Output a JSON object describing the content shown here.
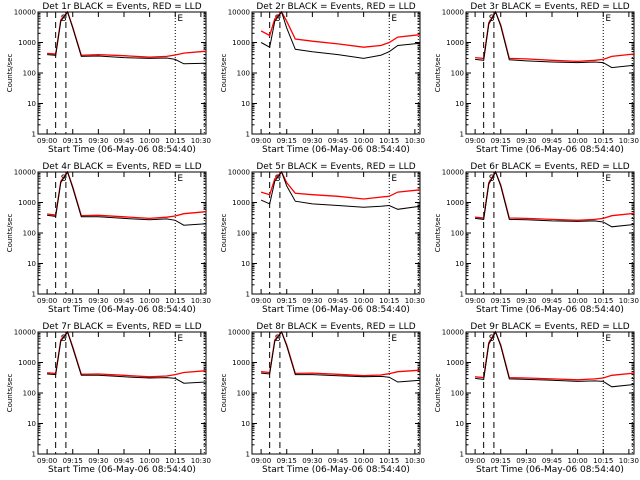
{
  "xlabel": "Start Time (06-May-06 08:54:40)",
  "ylabel": "Counts/sec",
  "x_ticks": [
    "09:00",
    "09:15",
    "09:30",
    "09:45",
    "10:00",
    "10:15",
    "10:30"
  ],
  "y_ticks": [
    "1",
    "10",
    "100",
    "1000",
    "10000"
  ],
  "line_colors": {
    "events": "#000000",
    "lld": "#ff0000"
  },
  "marker_labels": [
    "S",
    "E"
  ],
  "chart_data": [
    {
      "type": "line",
      "title": "Det 1r BLACK = Events, RED = LLD",
      "xlim": [
        "08:54:40",
        "10:33"
      ],
      "ylim": [
        1,
        10000
      ],
      "y_scale": "log",
      "x": [
        "09:00",
        "09:05",
        "09:08",
        "09:12",
        "09:15",
        "09:20",
        "09:30",
        "09:45",
        "10:00",
        "10:10",
        "10:15",
        "10:20",
        "10:33"
      ],
      "series": [
        {
          "name": "Events",
          "values": [
            400,
            380,
            5000,
            10000,
            3000,
            350,
            360,
            320,
            300,
            310,
            280,
            200,
            210
          ]
        },
        {
          "name": "LLD",
          "values": [
            440,
            420,
            5500,
            10000,
            3200,
            380,
            400,
            370,
            330,
            350,
            390,
            450,
            520
          ]
        }
      ]
    },
    {
      "type": "line",
      "title": "Det 2r BLACK = Events, RED = LLD",
      "xlim": [
        "08:54:40",
        "10:33"
      ],
      "ylim": [
        1,
        10000
      ],
      "y_scale": "log",
      "x": [
        "09:00",
        "09:05",
        "09:08",
        "09:12",
        "09:15",
        "09:20",
        "09:30",
        "09:45",
        "10:00",
        "10:10",
        "10:15",
        "10:20",
        "10:33"
      ],
      "series": [
        {
          "name": "Events",
          "values": [
            1000,
            700,
            5000,
            10000,
            3000,
            600,
            500,
            400,
            300,
            380,
            500,
            800,
            950
          ]
        },
        {
          "name": "LLD",
          "values": [
            2400,
            1700,
            6000,
            10000,
            5000,
            1300,
            1100,
            900,
            700,
            800,
            1000,
            1500,
            1800
          ]
        }
      ]
    },
    {
      "type": "line",
      "title": "Det 3r BLACK = Events, RED = LLD",
      "xlim": [
        "08:54:40",
        "10:33"
      ],
      "ylim": [
        1,
        10000
      ],
      "y_scale": "log",
      "x": [
        "09:00",
        "09:05",
        "09:08",
        "09:12",
        "09:15",
        "09:20",
        "09:30",
        "09:45",
        "10:00",
        "10:10",
        "10:15",
        "10:20",
        "10:33"
      ],
      "series": [
        {
          "name": "Events",
          "values": [
            280,
            260,
            4000,
            10000,
            3500,
            270,
            250,
            230,
            220,
            230,
            220,
            150,
            180
          ]
        },
        {
          "name": "LLD",
          "values": [
            320,
            300,
            4500,
            10000,
            3800,
            300,
            290,
            260,
            240,
            260,
            280,
            350,
            420
          ]
        }
      ]
    },
    {
      "type": "line",
      "title": "Det 4r BLACK = Events, RED = LLD",
      "xlim": [
        "08:54:40",
        "10:33"
      ],
      "ylim": [
        1,
        10000
      ],
      "y_scale": "log",
      "x": [
        "09:00",
        "09:05",
        "09:08",
        "09:12",
        "09:15",
        "09:20",
        "09:30",
        "09:45",
        "10:00",
        "10:10",
        "10:15",
        "10:20",
        "10:33"
      ],
      "series": [
        {
          "name": "Events",
          "values": [
            380,
            350,
            4500,
            10000,
            3000,
            340,
            340,
            300,
            270,
            290,
            260,
            180,
            200
          ]
        },
        {
          "name": "LLD",
          "values": [
            420,
            390,
            5000,
            10000,
            3300,
            370,
            380,
            340,
            300,
            330,
            360,
            430,
            500
          ]
        }
      ]
    },
    {
      "type": "line",
      "title": "Det 5r BLACK = Events, RED = LLD",
      "xlim": [
        "08:54:40",
        "10:33"
      ],
      "ylim": [
        1,
        10000
      ],
      "y_scale": "log",
      "x": [
        "09:00",
        "09:05",
        "09:08",
        "09:12",
        "09:15",
        "09:20",
        "09:30",
        "09:45",
        "10:00",
        "10:10",
        "10:15",
        "10:20",
        "10:33"
      ],
      "series": [
        {
          "name": "Events",
          "values": [
            1200,
            900,
            5000,
            10000,
            3500,
            1100,
            900,
            800,
            700,
            750,
            800,
            600,
            750
          ]
        },
        {
          "name": "LLD",
          "values": [
            2200,
            1800,
            6000,
            10000,
            4500,
            2000,
            1800,
            1600,
            1300,
            1500,
            1600,
            2200,
            2600
          ]
        }
      ]
    },
    {
      "type": "line",
      "title": "Det 6r BLACK = Events, RED = LLD",
      "xlim": [
        "08:54:40",
        "10:33"
      ],
      "ylim": [
        1,
        10000
      ],
      "y_scale": "log",
      "x": [
        "09:00",
        "09:05",
        "09:08",
        "09:12",
        "09:15",
        "09:20",
        "09:30",
        "09:45",
        "10:00",
        "10:10",
        "10:15",
        "10:20",
        "10:33"
      ],
      "series": [
        {
          "name": "Events",
          "values": [
            300,
            280,
            4000,
            10000,
            3500,
            280,
            270,
            250,
            240,
            250,
            230,
            160,
            190
          ]
        },
        {
          "name": "LLD",
          "values": [
            330,
            310,
            4500,
            10000,
            3800,
            310,
            300,
            280,
            260,
            280,
            300,
            370,
            440
          ]
        }
      ]
    },
    {
      "type": "line",
      "title": "Det 7r BLACK = Events, RED = LLD",
      "xlim": [
        "08:54:40",
        "10:33"
      ],
      "ylim": [
        1,
        10000
      ],
      "y_scale": "log",
      "x": [
        "09:00",
        "09:05",
        "09:08",
        "09:12",
        "09:15",
        "09:20",
        "09:30",
        "09:45",
        "10:00",
        "10:10",
        "10:15",
        "10:20",
        "10:33"
      ],
      "series": [
        {
          "name": "Events",
          "values": [
            420,
            400,
            5000,
            10000,
            3000,
            380,
            380,
            340,
            310,
            320,
            300,
            210,
            230
          ]
        },
        {
          "name": "LLD",
          "values": [
            460,
            440,
            5500,
            10000,
            3300,
            410,
            420,
            380,
            340,
            360,
            400,
            470,
            540
          ]
        }
      ]
    },
    {
      "type": "line",
      "title": "Det 8r BLACK = Events, RED = LLD",
      "xlim": [
        "08:54:40",
        "10:33"
      ],
      "ylim": [
        1,
        10000
      ],
      "y_scale": "log",
      "x": [
        "09:00",
        "09:05",
        "09:08",
        "09:12",
        "09:15",
        "09:20",
        "09:30",
        "09:45",
        "10:00",
        "10:10",
        "10:15",
        "10:20",
        "10:33"
      ],
      "series": [
        {
          "name": "Events",
          "values": [
            450,
            420,
            5000,
            10000,
            3500,
            400,
            400,
            370,
            340,
            350,
            330,
            230,
            260
          ]
        },
        {
          "name": "LLD",
          "values": [
            500,
            470,
            5500,
            10000,
            3800,
            440,
            450,
            410,
            370,
            390,
            430,
            500,
            560
          ]
        }
      ]
    },
    {
      "type": "line",
      "title": "Det 9r BLACK = Events, RED = LLD",
      "xlim": [
        "08:54:40",
        "10:33"
      ],
      "ylim": [
        1,
        10000
      ],
      "y_scale": "log",
      "x": [
        "09:00",
        "09:05",
        "09:08",
        "09:12",
        "09:15",
        "09:20",
        "09:30",
        "09:45",
        "10:00",
        "10:10",
        "10:15",
        "10:20",
        "10:33"
      ],
      "series": [
        {
          "name": "Events",
          "values": [
            300,
            280,
            4000,
            10000,
            3500,
            290,
            280,
            260,
            240,
            250,
            240,
            160,
            190
          ]
        },
        {
          "name": "LLD",
          "values": [
            340,
            320,
            4500,
            10000,
            3800,
            320,
            310,
            290,
            270,
            290,
            310,
            380,
            450
          ]
        }
      ]
    }
  ]
}
